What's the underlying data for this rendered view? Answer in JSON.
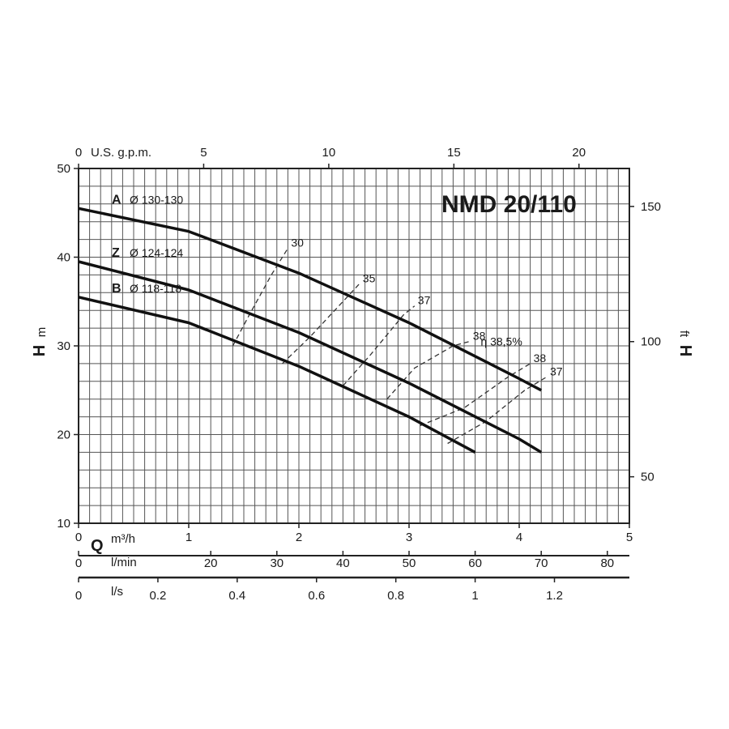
{
  "chart_data": {
    "type": "line",
    "title": "NMD 20/110",
    "xlabel": "Q",
    "ylabel": "H",
    "xlim": [
      0,
      5
    ],
    "ylim": [
      10,
      50
    ],
    "grid": true,
    "axes": {
      "left": {
        "unit": "m",
        "ticks": [
          "10",
          "20",
          "30",
          "40",
          "50"
        ]
      },
      "right": {
        "unit": "ft",
        "ticks": [
          "50",
          "100",
          "150"
        ]
      },
      "top": {
        "unit": "U.S. g.p.m.",
        "ticks": [
          "0",
          "5",
          "10",
          "15",
          "20"
        ]
      },
      "bottom_m3h": {
        "unit": "m³/h",
        "ticks": [
          "0",
          "1",
          "2",
          "3",
          "4",
          "5"
        ]
      },
      "bottom_lmin": {
        "unit": "l/min",
        "ticks": [
          "0",
          "20",
          "30",
          "40",
          "50",
          "60",
          "70",
          "80"
        ]
      },
      "bottom_ls": {
        "unit": "l/s",
        "ticks": [
          "0",
          "0.2",
          "0.4",
          "0.6",
          "0.8",
          "1",
          "1.2"
        ]
      }
    },
    "series": [
      {
        "letter": "A",
        "name": "Ø 130-130",
        "x": [
          0,
          1,
          2,
          3,
          4,
          4.2
        ],
        "y": [
          45.5,
          42.9,
          38.2,
          32.6,
          26.3,
          25.0
        ]
      },
      {
        "letter": "Z",
        "name": "Ø 124-124",
        "x": [
          0,
          1,
          2,
          3,
          4,
          4.2
        ],
        "y": [
          39.5,
          36.3,
          31.5,
          25.8,
          19.5,
          18.0
        ]
      },
      {
        "letter": "B",
        "name": "Ø 118-118",
        "x": [
          0,
          1,
          2,
          3,
          3.6
        ],
        "y": [
          35.5,
          32.6,
          27.7,
          22.0,
          18.0
        ]
      }
    ],
    "efficiency_curves": [
      {
        "label": "30",
        "x": [
          1.4,
          1.55,
          1.75,
          1.9
        ],
        "y": [
          30.0,
          33.5,
          38.0,
          41.0
        ]
      },
      {
        "label": "35",
        "x": [
          1.85,
          2.1,
          2.4,
          2.55
        ],
        "y": [
          28.0,
          31.0,
          35.0,
          37.0
        ]
      },
      {
        "label": "37",
        "x": [
          2.4,
          2.65,
          2.95,
          3.05
        ],
        "y": [
          25.5,
          29.0,
          33.5,
          34.5
        ]
      },
      {
        "label": "38",
        "x": [
          2.8,
          3.05,
          3.4,
          3.55
        ],
        "y": [
          24.0,
          27.5,
          30.0,
          30.5
        ]
      },
      {
        "label": "38",
        "x": [
          3.1,
          3.5,
          3.9,
          4.1
        ],
        "y": [
          21.0,
          23.0,
          26.5,
          28.0
        ]
      },
      {
        "label": "37",
        "x": [
          3.35,
          3.7,
          4.05,
          4.25
        ],
        "y": [
          19.0,
          21.5,
          25.0,
          26.5
        ]
      }
    ],
    "efficiency_label": "η 38,5%",
    "efficiency_peak": {
      "x": 3.65,
      "y": 29.5
    }
  }
}
